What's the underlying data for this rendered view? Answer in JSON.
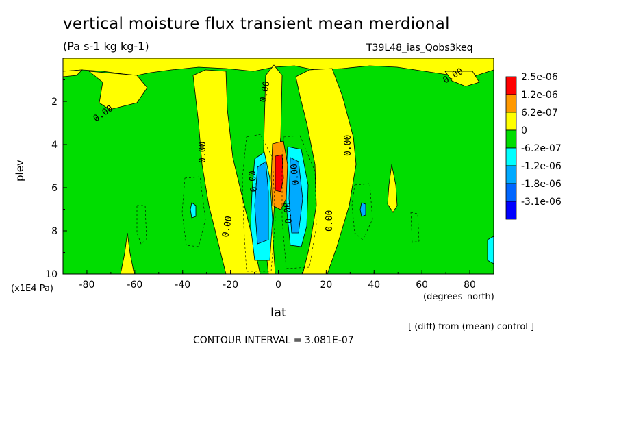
{
  "header": {
    "title": "vertical moisture flux transient mean merdional",
    "units": "(Pa s-1 kg kg-1)",
    "run_id": "T39L48_ias_Qobs3keq"
  },
  "axes": {
    "ylabel": "plev",
    "yunit": "(x1E4 Pa)",
    "xlabel": "lat",
    "xunit": "(degrees_north)"
  },
  "notes": {
    "comparison": "[ (diff) from (mean) control ]",
    "contour_interval": "CONTOUR INTERVAL = 3.081E-07"
  },
  "chart_data": {
    "type": "heatmap",
    "title": "vertical moisture flux transient mean merdional",
    "subtitle": "(Pa s-1 kg kg-1)",
    "xlabel": "lat",
    "ylabel": "plev",
    "xlim": [
      -90,
      90
    ],
    "ylim": [
      10,
      0
    ],
    "x_ticks": [
      "-80",
      "-60",
      "-40",
      "-20",
      "0",
      "20",
      "40",
      "60",
      "80"
    ],
    "x_tick_values": [
      -80,
      -60,
      -40,
      -20,
      0,
      20,
      40,
      60,
      80
    ],
    "y_ticks": [
      "2",
      "4",
      "6",
      "8",
      "10"
    ],
    "y_tick_values": [
      2,
      4,
      6,
      8,
      10
    ],
    "legend": [
      {
        "label": "2.5e-06",
        "color": "#ff0000"
      },
      {
        "label": "1.2e-06",
        "color": "#ff9900"
      },
      {
        "label": "6.2e-07",
        "color": "#ffff00"
      },
      {
        "label": "0",
        "color": "#00dd00"
      },
      {
        "label": "-6.2e-07",
        "color": "#00ffff"
      },
      {
        "label": "-1.2e-06",
        "color": "#00aaff"
      },
      {
        "label": "-1.8e-06",
        "color": "#0066ff"
      },
      {
        "label": "-3.1e-06",
        "color": "#0000ff"
      }
    ],
    "contour_labels": [
      "0.00",
      "0.00",
      "0.00",
      "0.00",
      "0.00",
      "0.00",
      "0.00",
      "0.00",
      "0.00",
      "0.00"
    ],
    "contour_interval": "3.081E-07",
    "legend_position": "right",
    "grid": false
  },
  "colors": {
    "background": "#ffffff",
    "green": "#00dd00",
    "yellow": "#ffff00",
    "orange": "#ff9900",
    "red": "#ff0000",
    "cyan": "#00ffff",
    "lightblue": "#00aaff",
    "blue": "#0066ff"
  }
}
